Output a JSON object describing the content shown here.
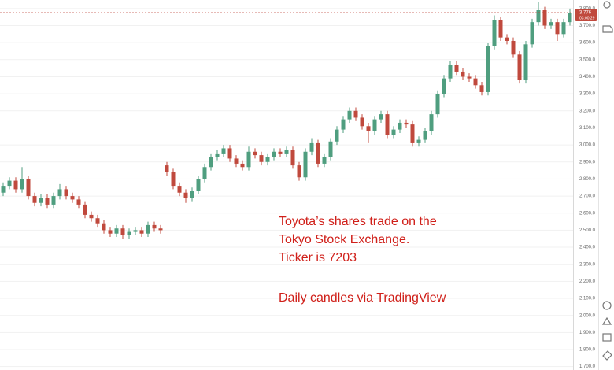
{
  "chart_data": {
    "type": "candlestick",
    "annotations": [
      "Toyota’s shares trade on the",
      "Tokyo Stock Exchange.",
      "Ticker is 7203",
      "Daily candles via TradingView"
    ],
    "up_color": "#4f9e7f",
    "down_color": "#c0493d",
    "annotation_color": "#d0201a",
    "grid": true,
    "ylim": [
      1680,
      3850
    ],
    "yticks": [
      {
        "value": 1700,
        "label": "1,700.0"
      },
      {
        "value": 1800,
        "label": "1,800.0"
      },
      {
        "value": 1900,
        "label": "1,900.0"
      },
      {
        "value": 2000,
        "label": "2,000.0"
      },
      {
        "value": 2100,
        "label": "2,100.0"
      },
      {
        "value": 2200,
        "label": "2,200.0"
      },
      {
        "value": 2300,
        "label": "2,300.0"
      },
      {
        "value": 2400,
        "label": "2,400.0"
      },
      {
        "value": 2500,
        "label": "2,500.0"
      },
      {
        "value": 2600,
        "label": "2,600.0"
      },
      {
        "value": 2700,
        "label": "2,700.0"
      },
      {
        "value": 2800,
        "label": "2,800.0"
      },
      {
        "value": 2900,
        "label": "2,900.0"
      },
      {
        "value": 3000,
        "label": "3,000.0"
      },
      {
        "value": 3100,
        "label": "3,100.0"
      },
      {
        "value": 3200,
        "label": "3,200.0"
      },
      {
        "value": 3300,
        "label": "3,300.0"
      },
      {
        "value": 3400,
        "label": "3,400.0"
      },
      {
        "value": 3500,
        "label": "3,500.0"
      },
      {
        "value": 3600,
        "label": "3,600.0"
      },
      {
        "value": 3700,
        "label": "3,700.0"
      },
      {
        "value": 3800,
        "label": "3,800.0"
      }
    ],
    "last_price": {
      "value": 3776,
      "label": "3,776"
    },
    "countdown": "03:00:29",
    "open": [
      2720,
      2760,
      2790,
      2740,
      2800,
      2700,
      2660,
      2690,
      2650,
      2700,
      2740,
      2700,
      2680,
      2650,
      2590,
      2570,
      2540,
      2500,
      2480,
      2510,
      2470,
      2490,
      2500,
      2480,
      2530,
      2510,
      2880,
      2840,
      2760,
      2720,
      2690,
      2730,
      2800,
      2870,
      2930,
      2950,
      2980,
      2920,
      2890,
      2870,
      2960,
      2940,
      2900,
      2930,
      2960,
      2950,
      2970,
      2880,
      2810,
      2960,
      3010,
      2890,
      2930,
      3020,
      3090,
      3150,
      3200,
      3160,
      3110,
      3080,
      3150,
      3180,
      3060,
      3090,
      3130,
      3120,
      3010,
      3030,
      3080,
      3180,
      3300,
      3390,
      3470,
      3430,
      3400,
      3390,
      3350,
      3310,
      3580,
      3730,
      3630,
      3610,
      3530,
      3380,
      3590,
      3720,
      3790,
      3700,
      3720,
      3650,
      3720
    ],
    "high": [
      2780,
      2810,
      2810,
      2870,
      2820,
      2720,
      2710,
      2710,
      2720,
      2770,
      2760,
      2720,
      2700,
      2670,
      2610,
      2590,
      2560,
      2520,
      2530,
      2530,
      2510,
      2520,
      2520,
      2550,
      2550,
      2530,
      2900,
      2860,
      2780,
      2740,
      2750,
      2820,
      2890,
      2950,
      2970,
      3000,
      3000,
      2940,
      2910,
      2990,
      2980,
      2960,
      2950,
      2980,
      2980,
      2990,
      2990,
      2900,
      2980,
      3040,
      3030,
      2950,
      3040,
      3110,
      3170,
      3220,
      3220,
      3180,
      3130,
      3170,
      3200,
      3200,
      3110,
      3150,
      3150,
      3140,
      3050,
      3100,
      3200,
      3320,
      3410,
      3490,
      3490,
      3450,
      3420,
      3410,
      3370,
      3600,
      3760,
      3750,
      3650,
      3630,
      3550,
      3610,
      3740,
      3840,
      3810,
      3740,
      3740,
      3740,
      3800
    ],
    "low": [
      2700,
      2740,
      2720,
      2720,
      2680,
      2640,
      2640,
      2630,
      2630,
      2680,
      2680,
      2660,
      2630,
      2570,
      2550,
      2520,
      2480,
      2460,
      2460,
      2450,
      2450,
      2470,
      2460,
      2460,
      2490,
      2480,
      2820,
      2740,
      2700,
      2660,
      2670,
      2710,
      2780,
      2850,
      2910,
      2930,
      2900,
      2870,
      2850,
      2850,
      2920,
      2880,
      2880,
      2910,
      2930,
      2930,
      2860,
      2790,
      2790,
      2940,
      2870,
      2870,
      2910,
      3000,
      3070,
      3130,
      3140,
      3090,
      3010,
      3060,
      3130,
      3040,
      3040,
      3070,
      3100,
      2990,
      2990,
      3010,
      3060,
      3160,
      3280,
      3370,
      3410,
      3380,
      3370,
      3330,
      3290,
      3290,
      3560,
      3610,
      3590,
      3510,
      3360,
      3360,
      3570,
      3700,
      3680,
      3680,
      3610,
      3630,
      3700
    ],
    "close": [
      2760,
      2790,
      2740,
      2800,
      2700,
      2660,
      2690,
      2650,
      2700,
      2740,
      2700,
      2680,
      2650,
      2590,
      2570,
      2540,
      2500,
      2480,
      2510,
      2470,
      2490,
      2500,
      2480,
      2530,
      2510,
      2500,
      2840,
      2760,
      2720,
      2690,
      2730,
      2800,
      2870,
      2930,
      2950,
      2980,
      2920,
      2890,
      2870,
      2960,
      2940,
      2900,
      2930,
      2960,
      2950,
      2970,
      2880,
      2810,
      2960,
      3010,
      2890,
      2930,
      3020,
      3090,
      3150,
      3200,
      3160,
      3110,
      3080,
      3150,
      3180,
      3060,
      3090,
      3130,
      3120,
      3010,
      3030,
      3080,
      3180,
      3300,
      3390,
      3470,
      3430,
      3400,
      3390,
      3350,
      3310,
      3580,
      3730,
      3630,
      3610,
      3530,
      3380,
      3590,
      3720,
      3790,
      3700,
      3720,
      3650,
      3720,
      3776
    ]
  }
}
